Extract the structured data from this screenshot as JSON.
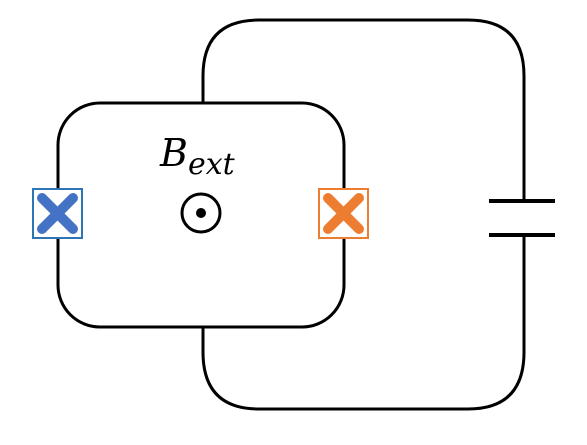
{
  "diagram": {
    "field_label": {
      "base": "B",
      "subscript": "ext"
    },
    "junction_left": {
      "color": "#4472C4",
      "symbol": "cross"
    },
    "junction_right": {
      "color": "#ED7D31",
      "symbol": "cross"
    },
    "field_symbol": "out-of-page-dot",
    "capacitor": "parallel-plate-capacitor"
  }
}
